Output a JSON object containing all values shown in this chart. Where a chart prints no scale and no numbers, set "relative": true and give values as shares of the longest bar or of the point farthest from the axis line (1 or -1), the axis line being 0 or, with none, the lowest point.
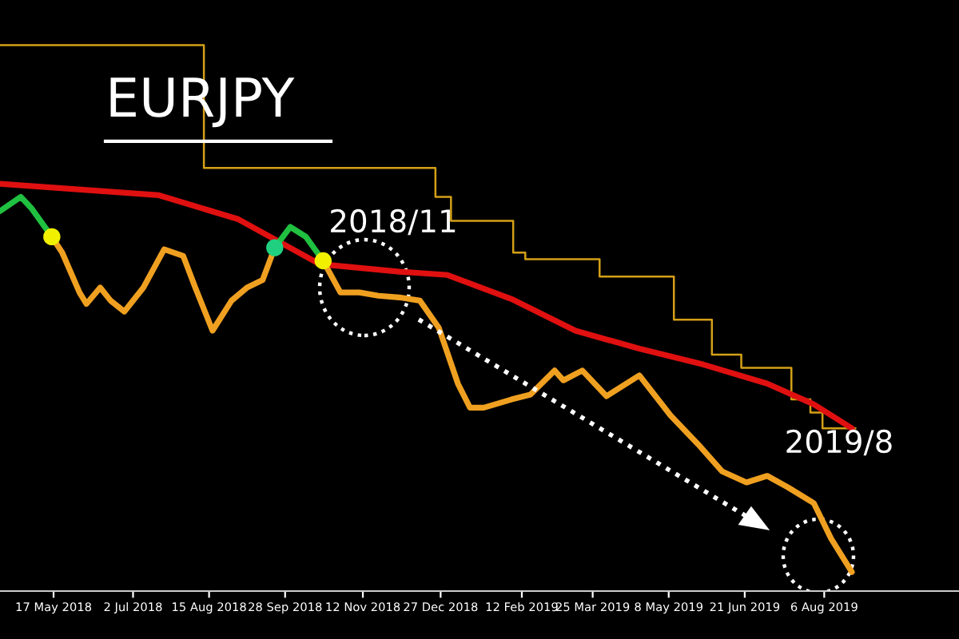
{
  "chart_data": {
    "type": "line",
    "title": "EURJPY",
    "relative": true,
    "grid": false,
    "legend": false,
    "marker": "none",
    "line_style": "solid",
    "xlim": [
      "2018-04-16",
      "2019-10-23"
    ],
    "xticks": [
      {
        "value": "2018-05-17",
        "label": "17 May 2018"
      },
      {
        "value": "2018-07-02",
        "label": "2 Jul 2018"
      },
      {
        "value": "2018-08-15",
        "label": "15 Aug 2018"
      },
      {
        "value": "2018-09-28",
        "label": "28 Sep 2018"
      },
      {
        "value": "2018-11-12",
        "label": "12 Nov 2018"
      },
      {
        "value": "2018-12-27",
        "label": "27 Dec 2018"
      },
      {
        "value": "2019-02-12",
        "label": "12 Feb 2019"
      },
      {
        "value": "2019-03-25",
        "label": "25 Mar 2019"
      },
      {
        "value": "2019-05-08",
        "label": "8 May 2019"
      },
      {
        "value": "2019-06-21",
        "label": "21 Jun 2019"
      },
      {
        "value": "2019-08-06",
        "label": "6 Aug 2019"
      }
    ],
    "annotations": [
      "2018/11",
      "2019/8"
    ],
    "series": [
      {
        "type": "step",
        "color": "#d4a017",
        "x": [
          "2018-04-16",
          "2018-08-12",
          "2018-12-24",
          "2019-01-02",
          "2019-02-07",
          "2019-02-14",
          "2019-03-29",
          "2019-05-11",
          "2019-06-02",
          "2019-06-19",
          "2019-07-18",
          "2019-07-29",
          "2019-08-05",
          "2019-08-24"
        ],
        "values": [
          1.0,
          0.775,
          0.722,
          0.678,
          0.62,
          0.608,
          0.576,
          0.497,
          0.433,
          0.409,
          0.351,
          0.327,
          0.298,
          0.298
        ]
      },
      {
        "type": "line",
        "color": "#e01010",
        "x": [
          "2018-04-16",
          "2018-07-17",
          "2018-09-01",
          "2018-10-18",
          "2018-12-03",
          "2018-12-31",
          "2019-02-06",
          "2019-03-15",
          "2019-04-21",
          "2019-05-28",
          "2019-07-04",
          "2019-07-31",
          "2019-08-22"
        ],
        "values": [
          0.746,
          0.725,
          0.681,
          0.599,
          0.585,
          0.579,
          0.535,
          0.477,
          0.444,
          0.415,
          0.38,
          0.342,
          0.298
        ]
      },
      {
        "type": "line",
        "color": "#f0a020",
        "x": [
          "2018-05-16",
          "2018-05-22",
          "2018-06-01",
          "2018-06-05",
          "2018-06-13",
          "2018-06-19",
          "2018-06-27",
          "2018-07-08",
          "2018-07-20",
          "2018-07-31",
          "2018-08-07",
          "2018-08-17",
          "2018-08-28",
          "2018-09-06",
          "2018-09-15",
          "2018-09-22",
          "2018-10-01",
          "2018-10-10",
          "2018-10-20",
          "2018-10-30",
          "2018-11-10",
          "2018-11-21",
          "2018-12-03",
          "2018-12-15",
          "2018-12-26",
          "2019-01-06",
          "2019-01-13",
          "2019-01-21",
          "2019-02-06",
          "2019-02-17",
          "2019-03-03",
          "2019-03-08",
          "2019-03-19",
          "2019-04-02",
          "2019-04-21",
          "2019-05-09",
          "2019-05-25",
          "2019-06-08",
          "2019-06-22",
          "2019-07-04",
          "2019-07-16",
          "2019-07-31",
          "2019-08-10",
          "2019-08-22"
        ],
        "values": [
          0.649,
          0.62,
          0.547,
          0.526,
          0.556,
          0.532,
          0.512,
          0.556,
          0.626,
          0.614,
          0.556,
          0.477,
          0.532,
          0.556,
          0.57,
          0.629,
          null,
          null,
          0.605,
          0.547,
          0.547,
          0.541,
          0.538,
          0.532,
          0.482,
          0.38,
          0.336,
          0.336,
          0.351,
          0.36,
          0.404,
          0.386,
          0.404,
          0.357,
          0.395,
          0.322,
          0.269,
          0.219,
          0.199,
          0.211,
          0.19,
          0.161,
          0.096,
          0.035
        ]
      },
      {
        "type": "line",
        "color": "#20c040",
        "x": [
          "2018-04-16",
          "2018-04-28",
          "2018-05-04",
          "2018-05-16",
          "2018-05-22",
          "2018-09-15",
          "2018-09-22",
          "2018-10-01",
          "2018-10-10",
          "2018-10-20"
        ],
        "values": [
          0.696,
          0.722,
          0.702,
          0.649,
          null,
          null,
          0.629,
          0.667,
          0.649,
          0.605
        ]
      },
      {
        "type": "scatter",
        "marker": "circle",
        "colors": [
          "#f0f000",
          "#20d080",
          "#f0f000"
        ],
        "x": [
          "2018-05-16",
          "2018-09-22",
          "2018-10-20"
        ],
        "values": [
          0.649,
          0.629,
          0.605
        ]
      }
    ]
  }
}
